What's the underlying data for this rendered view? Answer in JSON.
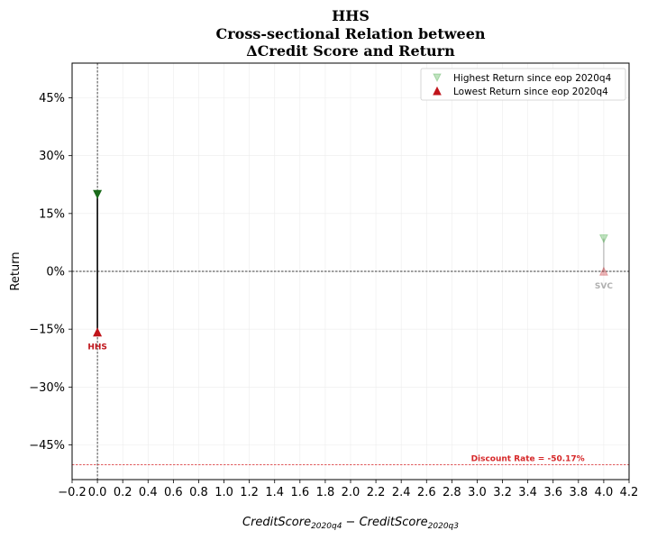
{
  "chart_data": {
    "type": "scatter",
    "title_lines": [
      "HHS",
      "Cross-sectional Relation between",
      "ΔCredit Score and Return"
    ],
    "xlabel": "CreditScore",
    "xlabel_sub1": "2020q4",
    "xlabel_minus": " − CreditScore",
    "xlabel_sub2": "2020q3",
    "ylabel": "Return",
    "xlim": [
      -0.2,
      4.2
    ],
    "ylim": [
      -0.54,
      0.54
    ],
    "x_ticks": [
      -0.2,
      0.0,
      0.2,
      0.4,
      0.6,
      0.8,
      1.0,
      1.2,
      1.4,
      1.6,
      1.8,
      2.0,
      2.2,
      2.4,
      2.6,
      2.8,
      3.0,
      3.2,
      3.4,
      3.6,
      3.8,
      4.0,
      4.2
    ],
    "x_tick_labels": [
      "−0.2",
      "0.0",
      "0.2",
      "0.4",
      "0.6",
      "0.8",
      "1.0",
      "1.2",
      "1.4",
      "1.6",
      "1.8",
      "2.0",
      "2.2",
      "2.4",
      "2.6",
      "2.8",
      "3.0",
      "3.2",
      "3.4",
      "3.6",
      "3.8",
      "4.0",
      "4.2"
    ],
    "y_ticks": [
      -0.45,
      -0.3,
      -0.15,
      0.0,
      0.15,
      0.3,
      0.45
    ],
    "y_tick_labels": [
      "−45%",
      "−30%",
      "−15%",
      "0%",
      "15%",
      "30%",
      "45%"
    ],
    "grid": true,
    "legend_position": "top-right",
    "series": [
      {
        "name": "Highest Return since eop 2020q4",
        "marker": "triangle-down",
        "color": "#2ca02c"
      },
      {
        "name": "Lowest Return since eop 2020q4",
        "marker": "triangle-up",
        "color": "#c0151b"
      }
    ],
    "points": [
      {
        "label": "HHS",
        "x": 0.0,
        "high": 0.2,
        "low": -0.158,
        "highlight": true
      },
      {
        "label": "SVC",
        "x": 4.0,
        "high": 0.085,
        "low": 0.0,
        "highlight": false
      }
    ],
    "hline_zero": 0.0,
    "vline_zero": 0.0,
    "discount_rate": {
      "value": -0.5017,
      "label": "Discount Rate = -50.17%",
      "color": "#d62728"
    }
  }
}
